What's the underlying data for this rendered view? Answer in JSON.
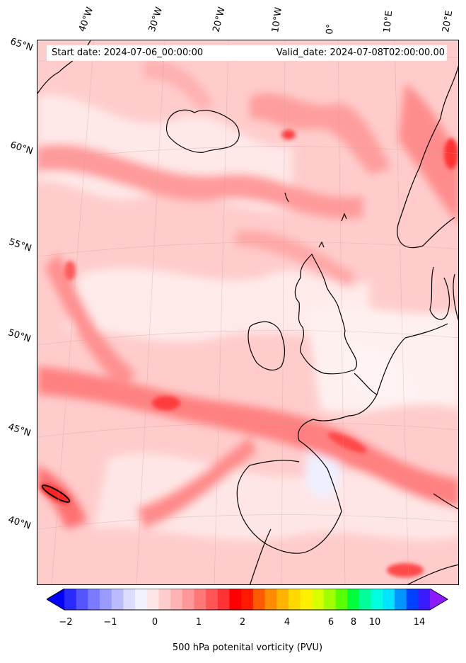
{
  "header": {
    "start_date": "Start date: 2024-07-06_00:00:00",
    "valid_date": "Valid_date: 2024-07-08T02:00:00.00"
  },
  "map": {
    "longitude_labels": [
      "40°W",
      "30°W",
      "20°W",
      "10°W",
      "0°",
      "10°E",
      "20°E"
    ],
    "latitude_labels": [
      "65°N",
      "60°N",
      "55°N",
      "50°N",
      "45°N",
      "40°N"
    ]
  },
  "colorbar": {
    "label": "500 hPa potenital vorticity (PVU)",
    "tick_labels": [
      "−2",
      "−1",
      "0",
      "1",
      "2",
      "4",
      "6",
      "8",
      "10",
      "14"
    ],
    "colors": [
      "#0000ff",
      "#2a2aff",
      "#5555ff",
      "#7b7bff",
      "#9a9aff",
      "#babaff",
      "#dcdcff",
      "#f2f2ff",
      "#ffe6e6",
      "#ffcccc",
      "#ffb3b3",
      "#ff9999",
      "#ff7777",
      "#ff5555",
      "#ff3333",
      "#ff0000",
      "#ff1a00",
      "#ff5a00",
      "#ff8c00",
      "#ffb400",
      "#ffd800",
      "#fff000",
      "#d8ff00",
      "#a0ff00",
      "#58ff00",
      "#00ff3a",
      "#00ff9a",
      "#00ffe0",
      "#00e4ff",
      "#0096ff",
      "#0040ff",
      "#3a1aff",
      "#8c1aff"
    ]
  }
}
